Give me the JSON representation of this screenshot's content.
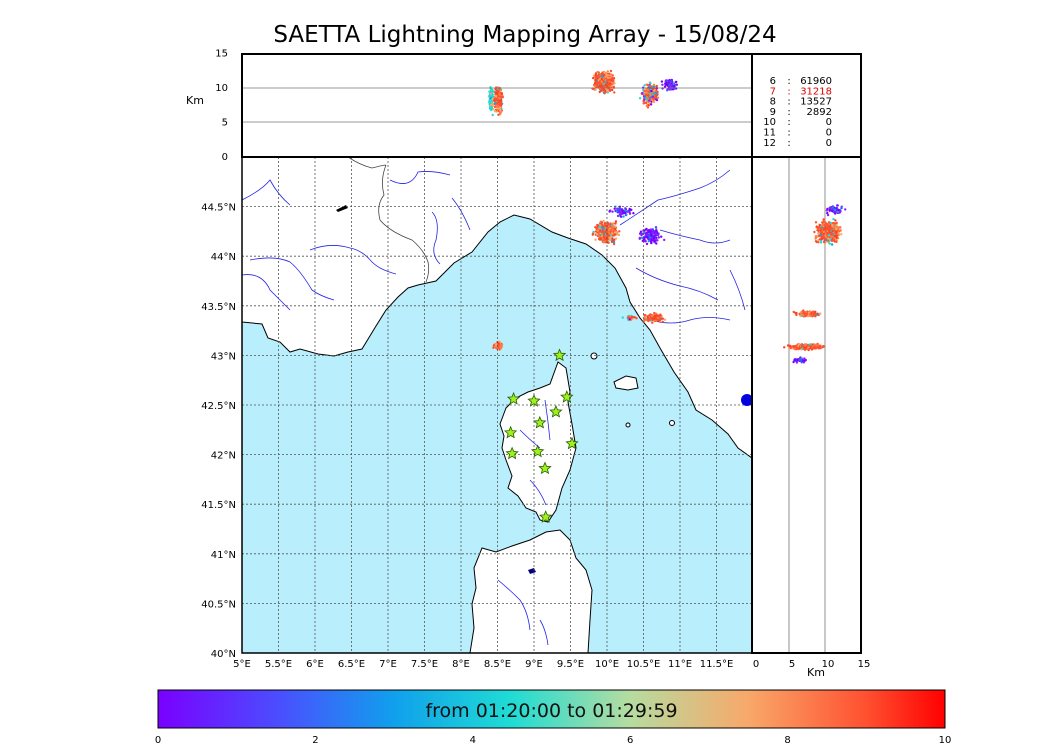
{
  "title": "SAETTA Lightning Mapping Array - 15/08/24",
  "colors": {
    "sea": "#b9eefc",
    "land": "#ffffff",
    "coast": "#000000",
    "rivers": "#2323e8",
    "borders": "#444444",
    "grid": "#555555",
    "station_fill": "#9cf21c",
    "station_stroke": "#2c5a00",
    "highlight": "#dd0000"
  },
  "altitude_panel": {
    "unit_label": "Km",
    "ticks": [
      "0",
      "5",
      "10",
      "15"
    ]
  },
  "side_panel": {
    "unit_label": "Km",
    "ticks": [
      "0",
      "5",
      "10",
      "15"
    ]
  },
  "station_counts": [
    {
      "stations": "6",
      "sep": ":",
      "count": "61960",
      "highlight": false
    },
    {
      "stations": "7",
      "sep": ":",
      "count": "31218",
      "highlight": true
    },
    {
      "stations": "8",
      "sep": ":",
      "count": "13527",
      "highlight": false
    },
    {
      "stations": "9",
      "sep": ":",
      "count": "2892",
      "highlight": false
    },
    {
      "stations": "10",
      "sep": ":",
      "count": "0",
      "highlight": false
    },
    {
      "stations": "11",
      "sep": ":",
      "count": "0",
      "highlight": false
    },
    {
      "stations": "12",
      "sep": ":",
      "count": "0",
      "highlight": false
    }
  ],
  "map": {
    "lon_labels": [
      "5°E",
      "5.5°E",
      "6°E",
      "6.5°E",
      "7°E",
      "7.5°E",
      "8°E",
      "8.5°E",
      "9°E",
      "9.5°E",
      "10°E",
      "10.5°E",
      "11°E",
      "11.5°E"
    ],
    "lat_labels": [
      "40°N",
      "40.5°N",
      "41°N",
      "41.5°N",
      "42°N",
      "42.5°N",
      "43°N",
      "43.5°N",
      "44°N",
      "44.5°N"
    ],
    "stations": [
      {
        "lon": 9.35,
        "lat": 43.0
      },
      {
        "lon": 8.72,
        "lat": 42.56
      },
      {
        "lon": 9.0,
        "lat": 42.54
      },
      {
        "lon": 9.45,
        "lat": 42.58
      },
      {
        "lon": 9.3,
        "lat": 42.43
      },
      {
        "lon": 9.08,
        "lat": 42.32
      },
      {
        "lon": 8.68,
        "lat": 42.22
      },
      {
        "lon": 9.52,
        "lat": 42.11
      },
      {
        "lon": 9.05,
        "lat": 42.03
      },
      {
        "lon": 8.7,
        "lat": 42.01
      },
      {
        "lon": 9.15,
        "lat": 41.86
      },
      {
        "lon": 9.16,
        "lat": 41.37
      }
    ]
  },
  "colorbar": {
    "label": "from 01:20:00 to 01:29:59",
    "ticks": [
      "0",
      "2",
      "4",
      "6",
      "8",
      "10"
    ]
  }
}
